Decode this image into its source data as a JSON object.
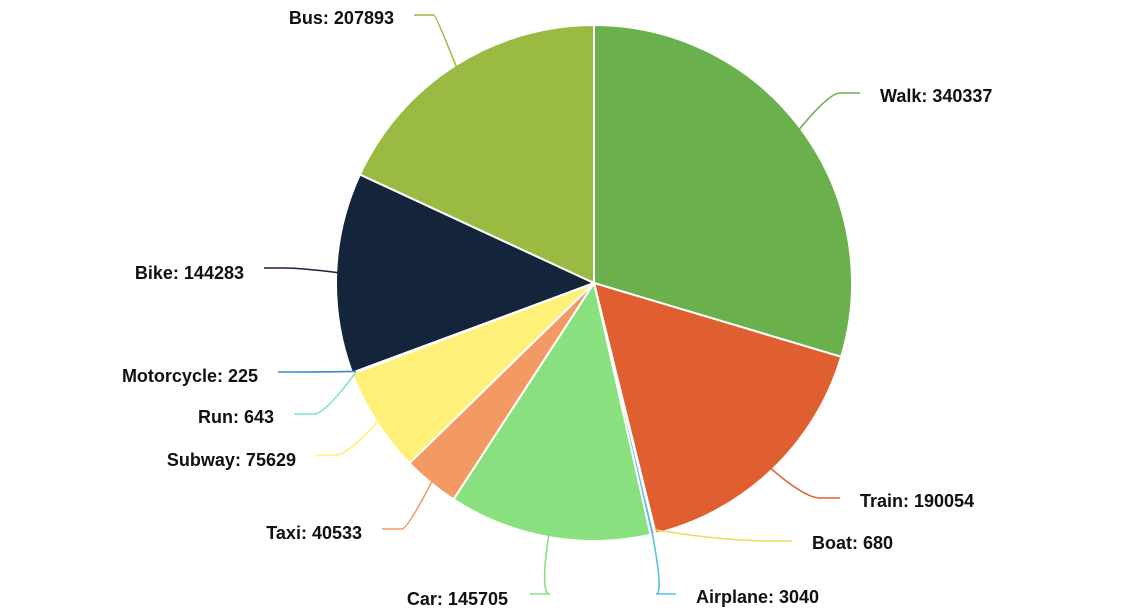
{
  "chart_data": {
    "type": "pie",
    "title": "",
    "start_angle_deg": 0,
    "direction": "clockwise",
    "slices": [
      {
        "name": "Walk",
        "value": 340337,
        "color": "#6ab04c",
        "label": "Walk: 340337"
      },
      {
        "name": "Train",
        "value": 190054,
        "color": "#e05f31",
        "label": "Train: 190054"
      },
      {
        "name": "Boat",
        "value": 680,
        "color": "#f0d85a",
        "label": "Boat: 680"
      },
      {
        "name": "Airplane",
        "value": 3040,
        "color": "#5bc0de",
        "label": "Airplane: 3040"
      },
      {
        "name": "Car",
        "value": 145705,
        "color": "#88e07e",
        "label": "Car: 145705"
      },
      {
        "name": "Taxi",
        "value": 40533,
        "color": "#f39a64",
        "label": "Taxi: 40533"
      },
      {
        "name": "Subway",
        "value": 75629,
        "color": "#fff07a",
        "label": "Subway: 75629"
      },
      {
        "name": "Run",
        "value": 643,
        "color": "#7de6c9",
        "label": "Run: 643"
      },
      {
        "name": "Motorcycle",
        "value": 225,
        "color": "#3a86d6",
        "label": "Motorcycle: 225"
      },
      {
        "name": "Bike",
        "value": 144283,
        "color": "#14243a",
        "label": "Bike: 144283"
      },
      {
        "name": "Bus",
        "value": 207893,
        "color": "#9aba44",
        "label": "Bus: 207893"
      }
    ]
  }
}
